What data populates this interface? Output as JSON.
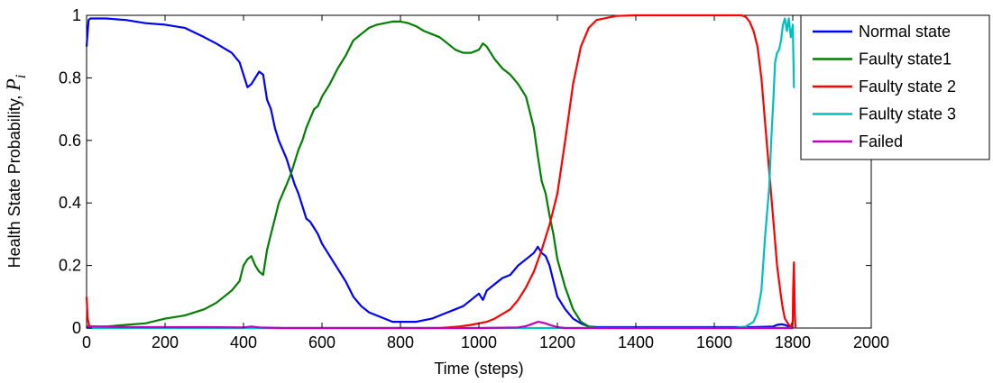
{
  "chart_data": {
    "type": "line",
    "xlabel": "Time (steps)",
    "ylabel_prefix": "Health State Probability, ",
    "ylabel_symbol": "P",
    "ylabel_subscript": "i",
    "xlim": [
      0,
      2000
    ],
    "ylim": [
      0,
      1
    ],
    "xticks": [
      "0",
      "200",
      "400",
      "600",
      "800",
      "1000",
      "1200",
      "1400",
      "1600",
      "1800",
      "2000"
    ],
    "yticks": [
      "0",
      "0.2",
      "0.4",
      "0.6",
      "0.8",
      "1"
    ],
    "grid": false,
    "legend_position": "top-right",
    "series": [
      {
        "name": "Normal state",
        "color": "#0000ff",
        "x": [
          0,
          5,
          10,
          50,
          100,
          150,
          200,
          250,
          300,
          330,
          350,
          370,
          390,
          400,
          410,
          420,
          430,
          440,
          450,
          460,
          470,
          480,
          490,
          500,
          510,
          520,
          530,
          540,
          550,
          560,
          570,
          580,
          590,
          600,
          620,
          640,
          660,
          680,
          700,
          720,
          740,
          760,
          780,
          800,
          820,
          840,
          860,
          880,
          900,
          920,
          940,
          960,
          980,
          1000,
          1010,
          1020,
          1040,
          1060,
          1080,
          1100,
          1120,
          1140,
          1150,
          1160,
          1170,
          1180,
          1190,
          1200,
          1220,
          1240,
          1260,
          1280,
          1300,
          1400,
          1500,
          1600,
          1700,
          1750,
          1760,
          1770,
          1780,
          1790,
          1800
        ],
        "y": [
          0.9,
          0.985,
          0.99,
          0.99,
          0.985,
          0.975,
          0.97,
          0.96,
          0.93,
          0.91,
          0.895,
          0.88,
          0.85,
          0.81,
          0.77,
          0.78,
          0.8,
          0.82,
          0.81,
          0.73,
          0.7,
          0.64,
          0.6,
          0.57,
          0.54,
          0.5,
          0.46,
          0.43,
          0.39,
          0.35,
          0.34,
          0.32,
          0.3,
          0.27,
          0.23,
          0.19,
          0.15,
          0.1,
          0.07,
          0.05,
          0.04,
          0.03,
          0.02,
          0.02,
          0.02,
          0.02,
          0.025,
          0.03,
          0.04,
          0.05,
          0.06,
          0.07,
          0.09,
          0.11,
          0.09,
          0.12,
          0.14,
          0.16,
          0.17,
          0.2,
          0.22,
          0.24,
          0.26,
          0.24,
          0.23,
          0.2,
          0.15,
          0.1,
          0.06,
          0.03,
          0.015,
          0.005,
          0.003,
          0.003,
          0.003,
          0.003,
          0.003,
          0.005,
          0.01,
          0.012,
          0.01,
          0.005,
          0.0
        ]
      },
      {
        "name": "Faulty state1",
        "color": "#008000",
        "x": [
          0,
          50,
          100,
          150,
          200,
          250,
          300,
          330,
          350,
          370,
          390,
          400,
          410,
          420,
          430,
          440,
          450,
          460,
          470,
          480,
          490,
          500,
          510,
          520,
          530,
          540,
          550,
          560,
          570,
          580,
          590,
          600,
          620,
          640,
          660,
          680,
          700,
          720,
          740,
          760,
          780,
          800,
          820,
          840,
          860,
          880,
          900,
          920,
          940,
          960,
          980,
          1000,
          1010,
          1020,
          1040,
          1060,
          1080,
          1100,
          1120,
          1140,
          1150,
          1160,
          1170,
          1180,
          1190,
          1200,
          1220,
          1240,
          1260,
          1280,
          1300,
          1400,
          1500,
          1800
        ],
        "y": [
          0.005,
          0.005,
          0.01,
          0.015,
          0.03,
          0.04,
          0.06,
          0.08,
          0.1,
          0.12,
          0.15,
          0.2,
          0.22,
          0.23,
          0.2,
          0.18,
          0.17,
          0.25,
          0.3,
          0.35,
          0.4,
          0.43,
          0.46,
          0.49,
          0.53,
          0.57,
          0.6,
          0.64,
          0.67,
          0.7,
          0.71,
          0.74,
          0.78,
          0.83,
          0.87,
          0.92,
          0.94,
          0.96,
          0.97,
          0.975,
          0.98,
          0.98,
          0.975,
          0.965,
          0.95,
          0.94,
          0.93,
          0.91,
          0.89,
          0.88,
          0.88,
          0.89,
          0.91,
          0.9,
          0.86,
          0.83,
          0.81,
          0.78,
          0.74,
          0.64,
          0.55,
          0.47,
          0.43,
          0.36,
          0.3,
          0.22,
          0.13,
          0.06,
          0.02,
          0.005,
          0.0,
          0.0,
          0.0,
          0.0
        ]
      },
      {
        "name": "Faulty state 2",
        "color": "#ff0000",
        "x": [
          0,
          3,
          6,
          10,
          50,
          100,
          200,
          300,
          400,
          500,
          600,
          700,
          800,
          900,
          950,
          980,
          1000,
          1020,
          1040,
          1060,
          1080,
          1100,
          1120,
          1140,
          1160,
          1180,
          1200,
          1220,
          1240,
          1260,
          1280,
          1300,
          1350,
          1400,
          1500,
          1600,
          1650,
          1670,
          1680,
          1690,
          1700,
          1710,
          1720,
          1730,
          1740,
          1750,
          1760,
          1770,
          1775,
          1780,
          1785,
          1790,
          1795,
          1800,
          1801,
          1803,
          1805,
          1807
        ],
        "y": [
          0.1,
          0.03,
          0.01,
          0.005,
          0.005,
          0.003,
          0.0,
          0.0,
          0.0,
          0.0,
          0.0,
          0.0,
          0.0,
          0.0,
          0.005,
          0.01,
          0.015,
          0.02,
          0.03,
          0.045,
          0.06,
          0.09,
          0.13,
          0.18,
          0.25,
          0.33,
          0.43,
          0.6,
          0.78,
          0.9,
          0.96,
          0.985,
          0.998,
          1.0,
          1.0,
          1.0,
          1.0,
          1.0,
          0.995,
          0.98,
          0.95,
          0.9,
          0.8,
          0.65,
          0.5,
          0.35,
          0.2,
          0.1,
          0.06,
          0.03,
          0.02,
          0.01,
          0.005,
          0.02,
          0.12,
          0.21,
          0.05,
          0.0
        ]
      },
      {
        "name": "Faulty state 3",
        "color": "#00bfbf",
        "x": [
          0,
          1600,
          1650,
          1680,
          1700,
          1710,
          1720,
          1730,
          1740,
          1745,
          1750,
          1755,
          1760,
          1765,
          1770,
          1775,
          1780,
          1785,
          1790,
          1795,
          1800,
          1803,
          1805
        ],
        "y": [
          0.0,
          0.0,
          0.0,
          0.005,
          0.02,
          0.05,
          0.12,
          0.3,
          0.45,
          0.6,
          0.72,
          0.85,
          0.88,
          0.89,
          0.92,
          0.97,
          0.99,
          0.95,
          0.99,
          0.93,
          0.97,
          0.77,
          0.77
        ]
      },
      {
        "name": "Failed",
        "color": "#bf00bf",
        "x": [
          0,
          100,
          200,
          300,
          400,
          420,
          440,
          500,
          1000,
          1100,
          1120,
          1140,
          1150,
          1160,
          1170,
          1180,
          1200,
          1220,
          1400,
          1800
        ],
        "y": [
          0.005,
          0.003,
          0.003,
          0.003,
          0.002,
          0.005,
          0.002,
          0.0,
          0.0,
          0.002,
          0.006,
          0.015,
          0.02,
          0.018,
          0.015,
          0.01,
          0.003,
          0.0,
          0.0,
          0.0
        ]
      }
    ]
  }
}
